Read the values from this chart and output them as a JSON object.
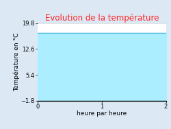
{
  "title": "Evolution de la température",
  "xlabel": "heure par heure",
  "ylabel": "Température en °C",
  "xlim": [
    0,
    2
  ],
  "ylim": [
    -1.8,
    19.8
  ],
  "yticks": [
    -1.8,
    5.4,
    12.6,
    19.8
  ],
  "xticks": [
    0,
    1,
    2
  ],
  "line_y": 17.0,
  "fill_color": "#aaeeff",
  "line_color": "#55bbdd",
  "background_color": "#dce9f5",
  "plot_bg_color": "#ffffff",
  "title_color": "#ff2222",
  "title_fontsize": 8.5,
  "axis_fontsize": 6,
  "label_fontsize": 6.5,
  "fig_width": 2.5,
  "fig_height": 1.88
}
